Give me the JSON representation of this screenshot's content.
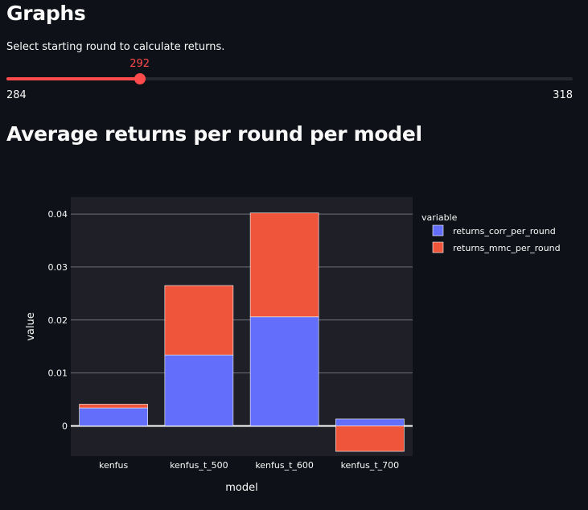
{
  "header": {
    "title": "Graphs"
  },
  "slider": {
    "label": "Select starting round to calculate returns.",
    "min": 284,
    "max": 318,
    "value": 292,
    "color": "#ff4b4b"
  },
  "section": {
    "title": "Average returns per round per model"
  },
  "chart_data": {
    "type": "bar",
    "barmode": "relative",
    "categories": [
      "kenfus",
      "kenfus_t_500",
      "kenfus_t_600",
      "kenfus_t_700"
    ],
    "series": [
      {
        "name": "returns_corr_per_round",
        "color": "#636efa",
        "values": [
          0.0034,
          0.0134,
          0.0206,
          0.0013
        ]
      },
      {
        "name": "returns_mmc_per_round",
        "color": "#ef553b",
        "values": [
          0.0007,
          0.0131,
          0.0196,
          -0.0048
        ]
      }
    ],
    "yticks": [
      "0",
      "0.01",
      "0.02",
      "0.03",
      "0.04"
    ],
    "ytick_values": [
      0,
      0.01,
      0.02,
      0.03,
      0.04
    ],
    "ylim": [
      -0.0057,
      0.0432
    ],
    "xlabel": "model",
    "ylabel": "value",
    "legend_title": "variable",
    "legend_position": "top-right",
    "grid": true,
    "plot_bg": "#1f2027"
  }
}
